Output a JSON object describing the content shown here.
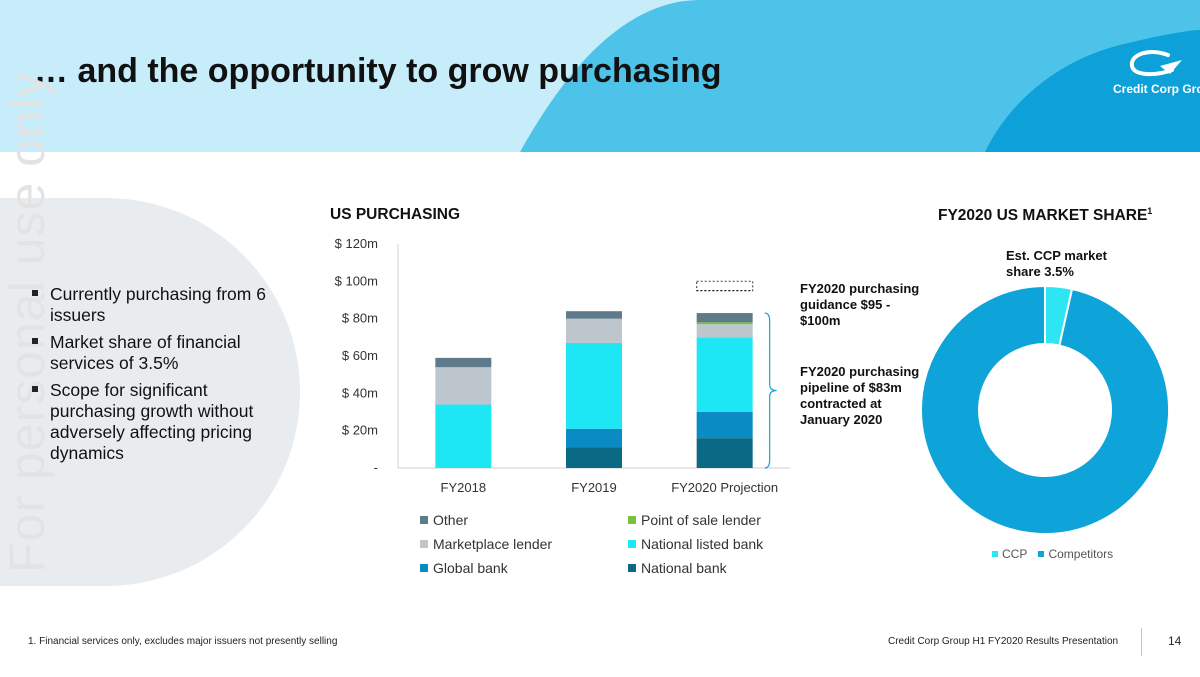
{
  "header": {
    "title": "… and the opportunity to grow purchasing"
  },
  "watermark": "For personal use only",
  "logo": {
    "text": "Credit Corp Group"
  },
  "bullets": [
    "Currently purchasing from 6 issuers",
    "Market share of financial services of 3.5%",
    "Scope for significant purchasing growth without adversely affecting pricing dynamics"
  ],
  "colors": {
    "header_band": "#c8edfa",
    "header_blob": "#4ec3ea",
    "logo_blue": "#0ea0d8",
    "other": "#5f7a8a",
    "point_of_sale_lender": "#7cc242",
    "marketplace_lender": "#bcc6cc",
    "national_listed_bank": "#1ee7f5",
    "global_bank": "#0a8bc4",
    "national_bank": "#0a6a85",
    "ccp": "#2ee6f3",
    "competitors": "#0ea3d9"
  },
  "annotations": {
    "guidance": "FY2020 purchasing guidance $95 - $100m",
    "pipeline": "FY2020 purchasing pipeline of $83m contracted at January 2020",
    "ccp_share": "Est. CCP market share 3.5%"
  },
  "chart_data": [
    {
      "type": "bar",
      "stacked": true,
      "title": "US PURCHASING",
      "categories": [
        "FY2018",
        "FY2019",
        "FY2020 Projection"
      ],
      "ylim": [
        0,
        120
      ],
      "yticks": [
        0,
        20,
        40,
        60,
        80,
        100,
        120
      ],
      "ytick_labels": [
        "-",
        "$ 20m",
        "$ 40m",
        "$ 60m",
        "$ 80m",
        "$ 100m",
        "$ 120m"
      ],
      "series": [
        {
          "name": "National bank",
          "values": [
            0,
            11,
            16
          ]
        },
        {
          "name": "Global bank",
          "values": [
            0,
            10,
            14
          ]
        },
        {
          "name": "National listed bank",
          "values": [
            34,
            46,
            40
          ]
        },
        {
          "name": "Marketplace lender",
          "values": [
            20,
            13,
            7
          ]
        },
        {
          "name": "Point of sale lender",
          "values": [
            0,
            0,
            1
          ]
        },
        {
          "name": "Other",
          "values": [
            5,
            4,
            5
          ]
        }
      ],
      "guidance_range": [
        95,
        100
      ],
      "guidance_box_category": "FY2020 Projection",
      "legend": [
        "Other",
        "Point of sale lender",
        "Marketplace lender",
        "National listed bank",
        "Global bank",
        "National bank"
      ]
    },
    {
      "type": "pie",
      "donut": true,
      "title": "FY2020 US MARKET SHARE",
      "title_superscript": "1",
      "labels": [
        "CCP",
        "Competitors"
      ],
      "values": [
        3.5,
        96.5
      ],
      "legend": [
        "CCP",
        "Competitors"
      ]
    }
  ],
  "footer": {
    "footnote": "1. Financial services only, excludes major issuers not presently selling",
    "presentation": "Credit Corp Group H1 FY2020 Results Presentation",
    "page": "14"
  }
}
